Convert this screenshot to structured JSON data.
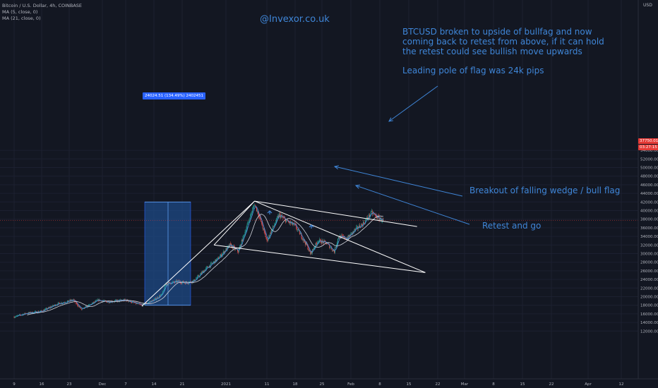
{
  "legend": {
    "symbol": "Bitcoin / U.S. Dollar, 4h, COINBASE",
    "ma1": "MA (5, close, 0)",
    "ma2": "MA (21, close, 0)"
  },
  "currency": "USD",
  "watermark": "@Invexor.co.uk",
  "annotations": {
    "note_main": "BTCUSD broken to upside of bullfag and now coming back to retest from above, if it can hold the retest could see bullish move upwards",
    "note_pole": "Leading pole of flag was 24k pips",
    "note_breakout": "Breakout of falling wedge / bull flag",
    "note_retest": "Retest and go"
  },
  "measure_label": "24024.51 (134.49%) 2402451",
  "last_price": "37750.01",
  "countdown": "03:27:15",
  "colors": {
    "background": "#131722",
    "up": "#26a69a",
    "down": "#ef5350",
    "ma5": "#4a90e2",
    "ma21": "#d1d4dc",
    "accent": "#3f86d8",
    "lines": "#ffffff",
    "measure_box": "#1e4a86"
  },
  "chart_data": {
    "type": "candlestick",
    "title": "Bitcoin / U.S. Dollar, 4h, COINBASE",
    "y_ticks": [
      12000,
      14000,
      16000,
      18000,
      20000,
      22000,
      24000,
      26000,
      28000,
      30000,
      32000,
      34000,
      36000,
      38000,
      40000,
      42000,
      44000,
      46000,
      48000,
      50000,
      52000,
      54000
    ],
    "x_ticks": [
      "9",
      "16",
      "23",
      "Dec",
      "7",
      "14",
      "21",
      "2021",
      "11",
      "18",
      "25",
      "Feb",
      "8",
      "15",
      "22",
      "Mar",
      "8",
      "15",
      "22",
      "Apr",
      "12"
    ],
    "price_path": [
      [
        "Nov 9",
        15300
      ],
      [
        "Nov 12",
        16100
      ],
      [
        "Nov 16",
        16600
      ],
      [
        "Nov 20",
        18300
      ],
      [
        "Nov 24",
        19200
      ],
      [
        "Nov 26",
        17000
      ],
      [
        "Nov 30",
        19200
      ],
      [
        "Dec 2",
        18800
      ],
      [
        "Dec 7",
        19200
      ],
      [
        "Dec 11",
        18000
      ],
      [
        "Dec 14",
        19200
      ],
      [
        "Dec 16",
        20500
      ],
      [
        "Dec 17",
        23000
      ],
      [
        "Dec 20",
        23500
      ],
      [
        "Dec 22",
        23200
      ],
      [
        "Dec 24",
        23700
      ],
      [
        "Dec 27",
        26500
      ],
      [
        "Dec 30",
        28800
      ],
      [
        "Jan 2",
        32000
      ],
      [
        "Jan 4",
        30500
      ],
      [
        "Jan 6",
        36000
      ],
      [
        "Jan 8",
        41500
      ],
      [
        "Jan 9",
        39000
      ],
      [
        "Jan 11",
        33000
      ],
      [
        "Jan 12",
        35000
      ],
      [
        "Jan 14",
        39000
      ],
      [
        "Jan 16",
        37500
      ],
      [
        "Jan 18",
        36500
      ],
      [
        "Jan 21",
        32000
      ],
      [
        "Jan 22",
        30000
      ],
      [
        "Jan 24",
        33000
      ],
      [
        "Jan 26",
        32500
      ],
      [
        "Jan 28",
        30500
      ],
      [
        "Jan 29",
        34000
      ],
      [
        "Jan 31",
        33500
      ],
      [
        "Feb 2",
        35500
      ],
      [
        "Feb 4",
        37000
      ],
      [
        "Feb 6",
        39500
      ],
      [
        "Feb 8",
        38000
      ],
      [
        "Feb 9",
        37750
      ]
    ],
    "price_path_x_ticks": [
      "Nov 9",
      "Nov 16",
      "Nov 23",
      "Dec 1",
      "Dec 7",
      "Dec 14",
      "Dec 21",
      "Jan 1",
      "Jan 11",
      "Jan 18",
      "Jan 25",
      "Feb 1",
      "Feb 8",
      "Feb 15",
      "Feb 22",
      "Mar 1",
      "Mar 8",
      "Mar 15",
      "Mar 22",
      "Apr 1",
      "Apr 12"
    ],
    "flag_pole": {
      "from": [
        "Dec 11",
        18000
      ],
      "to": [
        "Jan 8",
        42000
      ],
      "label": "24024.51 (134.49%) 2402451"
    },
    "trendlines": [
      {
        "name": "pole",
        "from": [
          "Dec 11",
          17800
        ],
        "to": [
          "Jan 8",
          42200
        ]
      },
      {
        "name": "left flag",
        "from": [
          "Dec 29",
          32000
        ],
        "to": [
          "Jan 8",
          42200
        ]
      },
      {
        "name": "flag top",
        "from": [
          "Jan 8",
          42200
        ],
        "to": [
          "Feb 17",
          36300
        ]
      },
      {
        "name": "wedge falling",
        "from": [
          "Jan 8",
          42200
        ],
        "to": [
          "Feb 19",
          25600
        ]
      },
      {
        "name": "flag bottom",
        "from": [
          "Dec 29",
          32000
        ],
        "to": [
          "Feb 19",
          25600
        ]
      }
    ],
    "last_price": 37750.01
  }
}
